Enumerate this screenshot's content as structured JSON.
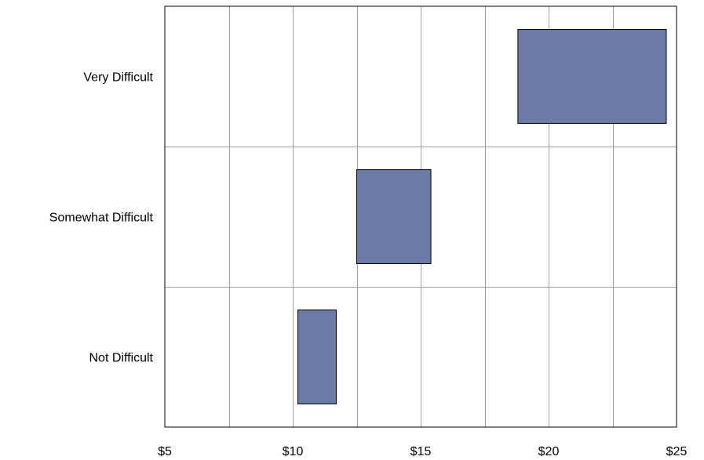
{
  "chart_data": {
    "type": "bar",
    "orientation": "horizontal-floating",
    "categories": [
      "Very Difficult",
      "Somewhat Difficult",
      "Not Difficult"
    ],
    "ranges": [
      {
        "category": "Very Difficult",
        "low": 18.8,
        "high": 24.6
      },
      {
        "category": "Somewhat Difficult",
        "low": 12.5,
        "high": 15.4
      },
      {
        "category": "Not Difficult",
        "low": 10.2,
        "high": 11.7
      }
    ],
    "x_ticks": [
      "$5",
      "$10",
      "$15",
      "$20",
      "$25"
    ],
    "xlim": [
      5,
      25
    ],
    "x_grid_step": 2.5,
    "grid": true,
    "bar_color": "#6c7aa8",
    "grid_color": "#a0a0a0"
  }
}
